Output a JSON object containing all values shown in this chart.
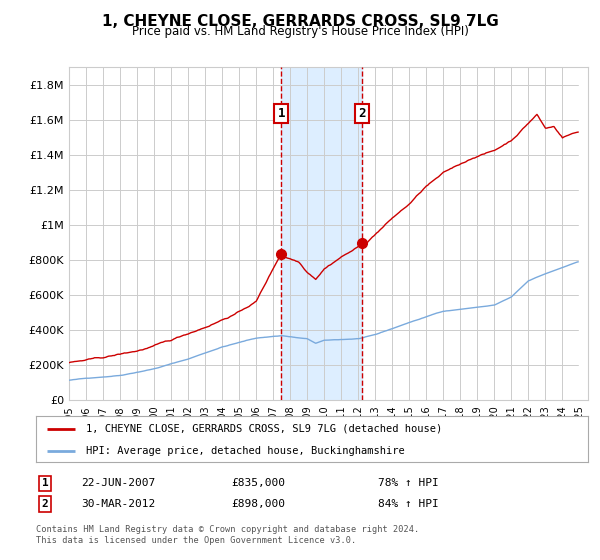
{
  "title": "1, CHEYNE CLOSE, GERRARDS CROSS, SL9 7LG",
  "subtitle": "Price paid vs. HM Land Registry's House Price Index (HPI)",
  "legend_label_red": "1, CHEYNE CLOSE, GERRARDS CROSS, SL9 7LG (detached house)",
  "legend_label_blue": "HPI: Average price, detached house, Buckinghamshire",
  "transaction1_date": "22-JUN-2007",
  "transaction1_price": "£835,000",
  "transaction1_pct": "78% ↑ HPI",
  "transaction2_date": "30-MAR-2012",
  "transaction2_price": "£898,000",
  "transaction2_pct": "84% ↑ HPI",
  "footer": "Contains HM Land Registry data © Crown copyright and database right 2024.\nThis data is licensed under the Open Government Licence v3.0.",
  "ylim": [
    0,
    1900000
  ],
  "yticks": [
    0,
    200000,
    400000,
    600000,
    800000,
    1000000,
    1200000,
    1400000,
    1600000,
    1800000
  ],
  "ytick_labels": [
    "£0",
    "£200K",
    "£400K",
    "£600K",
    "£800K",
    "£1M",
    "£1.2M",
    "£1.4M",
    "£1.6M",
    "£1.8M"
  ],
  "red_color": "#cc0000",
  "blue_color": "#7aaadd",
  "vline_color": "#cc0000",
  "shade_color": "#ddeeff",
  "grid_color": "#cccccc",
  "background_color": "#ffffff",
  "trans1_x": 2007.47,
  "trans1_y": 835000,
  "trans2_x": 2012.23,
  "trans2_y": 898000,
  "xmin": 1995.0,
  "xmax": 2025.5,
  "hatch_color": "#cccccc"
}
